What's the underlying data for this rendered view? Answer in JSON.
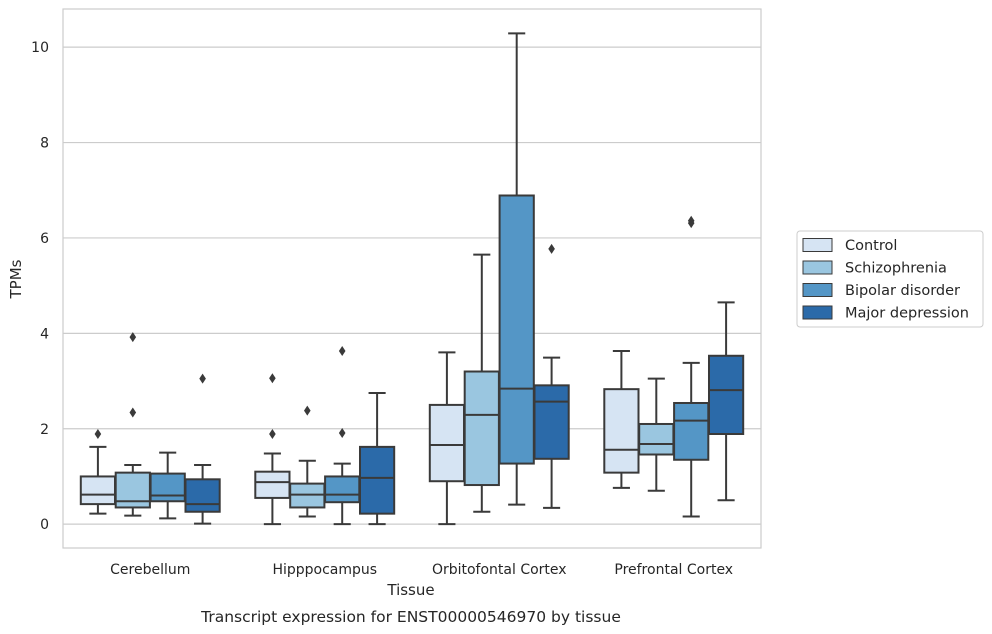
{
  "caption": "Transcript expression for ENST00000546970 by tissue",
  "chart_data": {
    "type": "boxplot",
    "title": "",
    "xlabel": "Tissue",
    "ylabel": "TPMs",
    "ylim": [
      -0.5,
      10.8
    ],
    "yticks": [
      0,
      2,
      4,
      6,
      8,
      10
    ],
    "grid": true,
    "legend_position": "right",
    "categories": [
      "Cerebellum",
      "Hipppocampus",
      "Orbitofontal Cortex",
      "Prefrontal Cortex"
    ],
    "series": [
      {
        "name": "Control",
        "color": "#d6e4f3",
        "boxes": [
          {
            "whisker_low": 0.22,
            "q1": 0.42,
            "median": 0.62,
            "q3": 1.0,
            "whisker_high": 1.62,
            "outliers": [
              1.89
            ]
          },
          {
            "whisker_low": 0.0,
            "q1": 0.55,
            "median": 0.88,
            "q3": 1.1,
            "whisker_high": 1.48,
            "outliers": [
              1.89,
              3.06
            ]
          },
          {
            "whisker_low": 0.0,
            "q1": 0.9,
            "median": 1.66,
            "q3": 2.5,
            "whisker_high": 3.6,
            "outliers": []
          },
          {
            "whisker_low": 0.76,
            "q1": 1.08,
            "median": 1.56,
            "q3": 2.83,
            "whisker_high": 3.63,
            "outliers": []
          }
        ]
      },
      {
        "name": "Schizophrenia",
        "color": "#9ac6e0",
        "boxes": [
          {
            "whisker_low": 0.18,
            "q1": 0.35,
            "median": 0.48,
            "q3": 1.08,
            "whisker_high": 1.24,
            "outliers": [
              2.34,
              3.92
            ]
          },
          {
            "whisker_low": 0.16,
            "q1": 0.35,
            "median": 0.62,
            "q3": 0.85,
            "whisker_high": 1.33,
            "outliers": [
              2.38
            ]
          },
          {
            "whisker_low": 0.26,
            "q1": 0.82,
            "median": 2.29,
            "q3": 3.2,
            "whisker_high": 5.65,
            "outliers": []
          },
          {
            "whisker_low": 0.7,
            "q1": 1.46,
            "median": 1.68,
            "q3": 2.1,
            "whisker_high": 3.05,
            "outliers": []
          }
        ]
      },
      {
        "name": "Bipolar disorder",
        "color": "#5496c6",
        "boxes": [
          {
            "whisker_low": 0.12,
            "q1": 0.48,
            "median": 0.6,
            "q3": 1.06,
            "whisker_high": 1.5,
            "outliers": []
          },
          {
            "whisker_low": 0.0,
            "q1": 0.46,
            "median": 0.62,
            "q3": 1.0,
            "whisker_high": 1.27,
            "outliers": [
              1.91,
              3.63
            ]
          },
          {
            "whisker_low": 0.41,
            "q1": 1.27,
            "median": 2.84,
            "q3": 6.89,
            "whisker_high": 10.29,
            "outliers": []
          },
          {
            "whisker_low": 0.16,
            "q1": 1.35,
            "median": 2.17,
            "q3": 2.54,
            "whisker_high": 3.38,
            "outliers": [
              6.31,
              6.36
            ]
          }
        ]
      },
      {
        "name": "Major depression",
        "color": "#2b6aa9",
        "boxes": [
          {
            "whisker_low": 0.01,
            "q1": 0.26,
            "median": 0.42,
            "q3": 0.94,
            "whisker_high": 1.24,
            "outliers": [
              3.05
            ]
          },
          {
            "whisker_low": 0.0,
            "q1": 0.22,
            "median": 0.97,
            "q3": 1.62,
            "whisker_high": 2.75,
            "outliers": []
          },
          {
            "whisker_low": 0.34,
            "q1": 1.37,
            "median": 2.57,
            "q3": 2.91,
            "whisker_high": 3.49,
            "outliers": [
              5.77
            ]
          },
          {
            "whisker_low": 0.5,
            "q1": 1.89,
            "median": 2.81,
            "q3": 3.53,
            "whisker_high": 4.65,
            "outliers": []
          }
        ]
      }
    ]
  },
  "colors": {
    "grid": "#cccccc",
    "frame": "#cccccc",
    "box_line": "#3a3a3a",
    "text": "#262626"
  }
}
